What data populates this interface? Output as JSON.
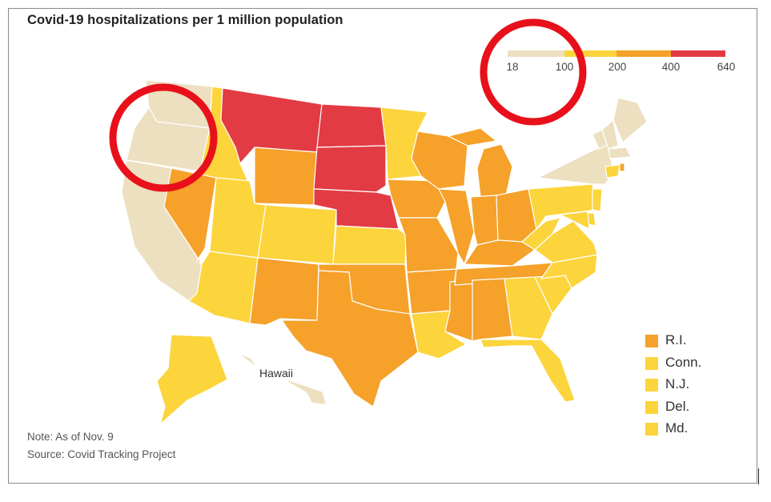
{
  "title": "Covid-19 hospitalizations per 1 million population",
  "scale": {
    "ticks": [
      "18",
      "100",
      "200",
      "400",
      "640"
    ],
    "bins": [
      {
        "from": 18,
        "to": 100,
        "color": "#ede0c0"
      },
      {
        "from": 100,
        "to": 200,
        "color": "#fcd43c"
      },
      {
        "from": 200,
        "to": 400,
        "color": "#f5a12a"
      },
      {
        "from": 400,
        "to": 640,
        "color": "#e23b43"
      }
    ]
  },
  "colors": {
    "low": "#ede0c0",
    "mid": "#fcd43c",
    "high": "#f5a12a",
    "top": "#e23b43",
    "highlight_circle": "#e8101a"
  },
  "small_states": [
    {
      "label": "R.I.",
      "bin": "high"
    },
    {
      "label": "Conn.",
      "bin": "mid"
    },
    {
      "label": "N.J.",
      "bin": "mid"
    },
    {
      "label": "Del.",
      "bin": "mid"
    },
    {
      "label": "Md.",
      "bin": "mid"
    }
  ],
  "hawaii_label": "Hawaii",
  "note": "Note: As of Nov. 9",
  "source": "Source: Covid Tracking Project",
  "state_bins": {
    "WA": "low",
    "OR": "low",
    "CA": "low",
    "ID": "mid",
    "NV": "high",
    "UT": "mid",
    "AZ": "mid",
    "MT": "top",
    "WY": "high",
    "CO": "mid",
    "NM": "high",
    "ND": "top",
    "SD": "top",
    "NE": "top",
    "KS": "mid",
    "OK": "high",
    "TX": "high",
    "MN": "mid",
    "IA": "high",
    "MO": "high",
    "AR": "high",
    "LA": "mid",
    "WI": "high",
    "IL": "high",
    "MS": "high",
    "MI": "high",
    "IN": "high",
    "KY": "high",
    "TN": "high",
    "AL": "high",
    "OH": "high",
    "GA": "mid",
    "FL": "mid",
    "SC": "mid",
    "NC": "mid",
    "VA": "mid",
    "WV": "mid",
    "PA": "mid",
    "NY": "low",
    "VT": "low",
    "NH": "low",
    "ME": "low",
    "MA": "low",
    "CT": "mid",
    "RI": "high",
    "NJ": "mid",
    "DE": "mid",
    "MD": "mid",
    "AK": "mid",
    "HI": "low"
  }
}
